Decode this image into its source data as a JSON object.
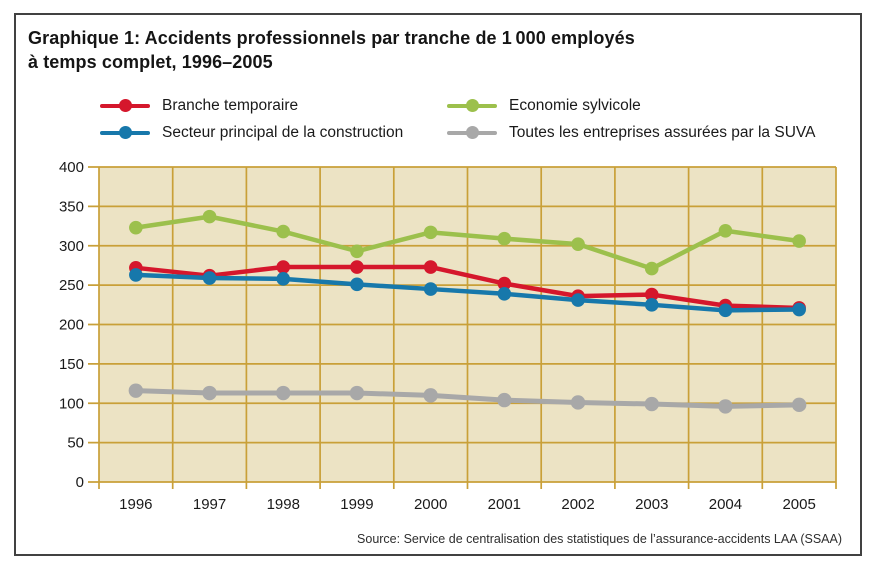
{
  "header": {
    "title_line1": "Graphique 1: Accidents professionnels par tranche de 1 000 employés",
    "title_line2": "à temps complet, 1996–2005"
  },
  "footer": {
    "source": "Source: Service de centralisation des statistiques de l’assurance-accidents LAA (SSAA)"
  },
  "colors": {
    "frame_border": "#414141",
    "plot_background": "#ece3c4",
    "grid": "#c9a038",
    "text": "#1a1a1a"
  },
  "chart_data": {
    "type": "line",
    "title": "Graphique 1: Accidents professionnels par tranche de 1 000 employés à temps complet, 1996–2005",
    "xlabel": "",
    "ylabel": "",
    "x": [
      1996,
      1997,
      1998,
      1999,
      2000,
      2001,
      2002,
      2003,
      2004,
      2005
    ],
    "ylim": [
      0,
      400
    ],
    "ytick_step": 50,
    "grid": true,
    "legend_position": "top",
    "series": [
      {
        "name": "Branche temporaire",
        "color": "#d5172c",
        "values": [
          272,
          262,
          273,
          273,
          273,
          252,
          236,
          238,
          224,
          221
        ]
      },
      {
        "name": "Secteur principal de la construction",
        "color": "#1778ab",
        "values": [
          263,
          259,
          258,
          251,
          245,
          239,
          231,
          225,
          218,
          219
        ]
      },
      {
        "name": "Economie sylvicole",
        "color": "#9cc04c",
        "values": [
          323,
          337,
          318,
          293,
          317,
          309,
          302,
          271,
          319,
          306
        ]
      },
      {
        "name": "Toutes les entreprises assurées par la SUVA",
        "color": "#a8a8a8",
        "values": [
          116,
          113,
          113,
          113,
          110,
          104,
          101,
          99,
          96,
          98
        ]
      }
    ]
  }
}
